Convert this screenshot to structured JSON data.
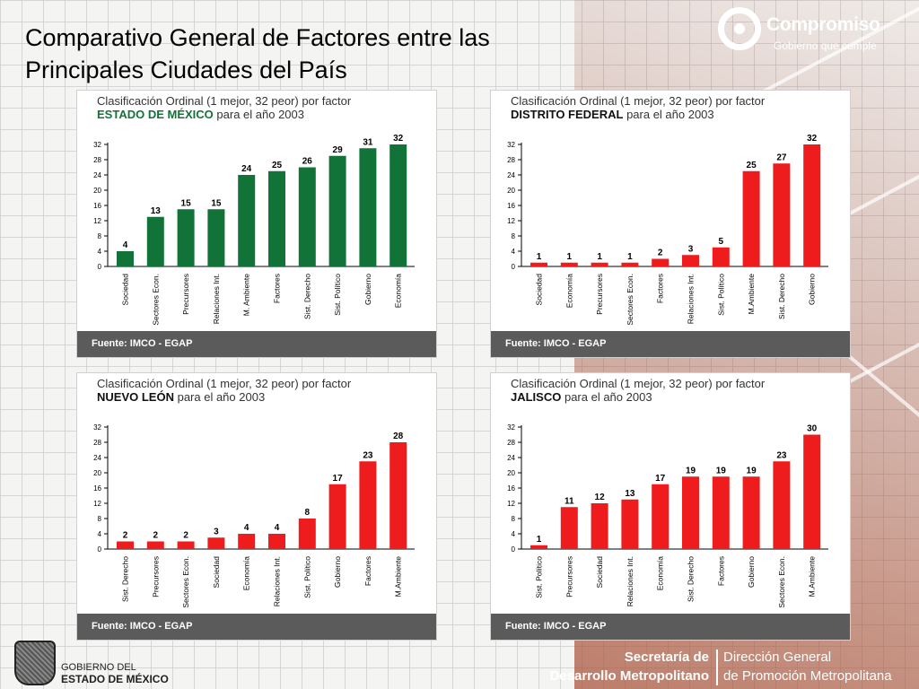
{
  "slide": {
    "title_line1": "Comparativo General de Factores entre las",
    "title_line2": "Principales Ciudades del País"
  },
  "logo": {
    "name": "Compromiso",
    "tagline": "Gobierno que cumple"
  },
  "footer": {
    "gov_line1": "GOBIERNO DEL",
    "gov_line2": "ESTADO DE MÉXICO",
    "secretaria_line1": "Secretaría de",
    "secretaria_line2": "Desarrollo Metropolitano",
    "direccion_line1": "Dirección General",
    "direccion_line2": "de Promoción Metropolitana"
  },
  "colors": {
    "green": "#127338",
    "red": "#ee1c1c"
  },
  "panels": [
    {
      "header1": "Clasificación Ordinal (1 mejor, 32 peor) por factor",
      "state": "ESTADO DE MÉXICO",
      "year": "para el año 2003",
      "source": "Fuente: IMCO - EGAP"
    },
    {
      "header1": "Clasificación Ordinal (1 mejor, 32 peor) por factor",
      "state": "DISTRITO FEDERAL",
      "year": "para el año 2003",
      "source": "Fuente: IMCO - EGAP"
    },
    {
      "header1": "Clasificación Ordinal (1 mejor, 32 peor) por factor",
      "state": "NUEVO LEÓN",
      "year": "para el año 2003",
      "source": "Fuente: IMCO - EGAP"
    },
    {
      "header1": "Clasificación Ordinal (1 mejor, 32 peor) por factor",
      "state": "JALISCO",
      "year": "para el año 2003",
      "source": "Fuente: IMCO - EGAP"
    }
  ],
  "chart_data": [
    {
      "type": "bar",
      "title": "Clasificación Ordinal (1 mejor, 32 peor) por factor ESTADO DE MÉXICO para el año 2003",
      "categories": [
        "Sociedad",
        "Sectores Econ.",
        "Precursores",
        "Relaciones Int.",
        "M. Ambiente",
        "Factores",
        "Sist. Derecho",
        "Sist. Político",
        "Gobierno",
        "Economía"
      ],
      "values": [
        4,
        13,
        15,
        15,
        24,
        25,
        26,
        29,
        31,
        32
      ],
      "color": "#127338",
      "ylim": [
        0,
        32
      ],
      "yticks": [
        0,
        4,
        8,
        12,
        16,
        20,
        24,
        28,
        32
      ],
      "grid": false
    },
    {
      "type": "bar",
      "title": "Clasificación Ordinal (1 mejor, 32 peor) por factor DISTRITO FEDERAL para el año 2003",
      "categories": [
        "Sociedad",
        "Economía",
        "Precursores",
        "Sectores Econ.",
        "Factores",
        "Relaciones Int.",
        "Sist. Político",
        "M.Ambiente",
        "Sist. Derecho",
        "Gobierno"
      ],
      "values": [
        1,
        1,
        1,
        1,
        2,
        3,
        5,
        25,
        27,
        32
      ],
      "color": "#ee1c1c",
      "ylim": [
        0,
        32
      ],
      "yticks": [
        0,
        4,
        8,
        12,
        16,
        20,
        24,
        28,
        32
      ],
      "grid": false
    },
    {
      "type": "bar",
      "title": "Clasificación Ordinal (1 mejor, 32 peor) por factor NUEVO LEÓN para el año 2003",
      "categories": [
        "Sist. Derecho",
        "Precursores",
        "Sectores Econ.",
        "Sociedad",
        "Economía",
        "Relaciones Int.",
        "Sist. Político",
        "Gobierno",
        "Factores",
        "M.Ambiente"
      ],
      "values": [
        2,
        2,
        2,
        3,
        4,
        4,
        8,
        17,
        23,
        28
      ],
      "color": "#ee1c1c",
      "ylim": [
        0,
        32
      ],
      "yticks": [
        0,
        4,
        8,
        12,
        16,
        20,
        24,
        28,
        32
      ],
      "grid": false
    },
    {
      "type": "bar",
      "title": "Clasificación Ordinal (1 mejor, 32 peor) por factor JALISCO para el año 2003",
      "categories": [
        "Sist. Político",
        "Precursores",
        "Sociedad",
        "Relaciones Int.",
        "Economía",
        "Sist. Derecho",
        "Factores",
        "Gobierno",
        "Sectores Econ.",
        "M.Ambiente"
      ],
      "values": [
        1,
        11,
        12,
        13,
        17,
        19,
        19,
        19,
        23,
        30
      ],
      "color": "#ee1c1c",
      "ylim": [
        0,
        32
      ],
      "yticks": [
        0,
        4,
        8,
        12,
        16,
        20,
        24,
        28,
        32
      ],
      "grid": false
    }
  ]
}
